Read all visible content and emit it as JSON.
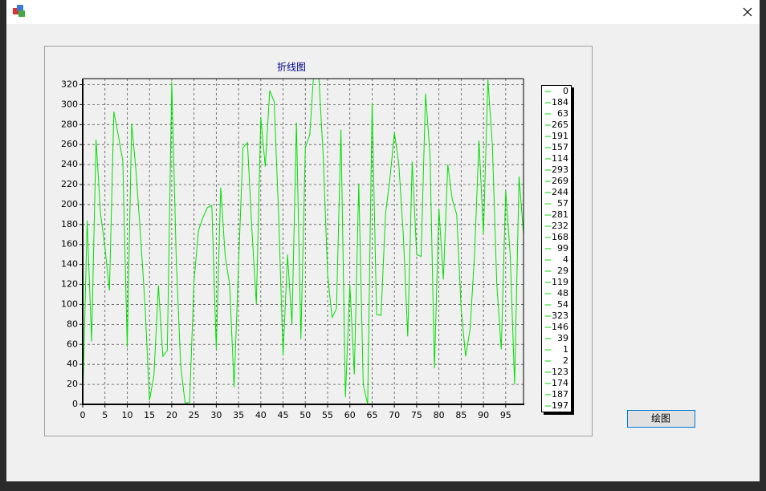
{
  "chart_data": {
    "type": "line",
    "title": "折线图",
    "x": [
      0,
      1,
      2,
      3,
      4,
      5,
      6,
      7,
      8,
      9,
      10,
      11,
      12,
      13,
      14,
      15,
      16,
      17,
      18,
      19,
      20,
      21,
      22,
      23,
      24,
      25,
      26,
      27,
      28,
      29,
      30,
      31,
      32,
      33,
      34,
      35,
      36,
      37,
      38,
      39,
      40,
      41,
      42,
      43,
      44,
      45,
      46,
      47,
      48,
      49,
      50,
      51,
      52,
      53,
      54,
      55,
      56,
      57,
      58,
      59,
      60,
      61,
      62,
      63,
      64,
      65,
      66,
      67,
      68,
      69,
      70,
      71,
      72,
      73,
      74,
      75,
      76,
      77,
      78,
      79,
      80,
      81,
      82,
      83,
      84,
      85,
      86,
      87,
      88,
      89,
      90,
      91,
      92,
      93,
      94,
      95,
      96,
      97,
      98,
      99
    ],
    "series": [
      {
        "color": "#00e000",
        "values": [
          0,
          184,
          63,
          265,
          191,
          157,
          114,
          293,
          269,
          244,
          57,
          281,
          232,
          168,
          99,
          4,
          29,
          119,
          48,
          54,
          323,
          146,
          39,
          1,
          2,
          123,
          174,
          187,
          197,
          199,
          55,
          217,
          148,
          120,
          17,
          140,
          257,
          262,
          175,
          100,
          287,
          238,
          314,
          303,
          190,
          49,
          150,
          80,
          282,
          65,
          257,
          270,
          340,
          330,
          250,
          130,
          87,
          96,
          275,
          7,
          120,
          30,
          221,
          20,
          0,
          302,
          90,
          89,
          190,
          226,
          272,
          240,
          170,
          68,
          243,
          150,
          148,
          311,
          250,
          36,
          196,
          125,
          240,
          205,
          190,
          95,
          48,
          75,
          150,
          264,
          170,
          325,
          260,
          120,
          55,
          214,
          150,
          20,
          228,
          170
        ]
      }
    ],
    "xlim": [
      0,
      99
    ],
    "ylim": [
      0,
      326
    ],
    "xticks": [
      0,
      5,
      10,
      15,
      20,
      25,
      30,
      35,
      40,
      45,
      50,
      55,
      60,
      65,
      70,
      75,
      80,
      85,
      90,
      95
    ],
    "yticks": [
      0,
      20,
      40,
      60,
      80,
      100,
      120,
      140,
      160,
      180,
      200,
      220,
      240,
      260,
      280,
      300,
      320
    ],
    "grid": true
  },
  "button": "绘图"
}
